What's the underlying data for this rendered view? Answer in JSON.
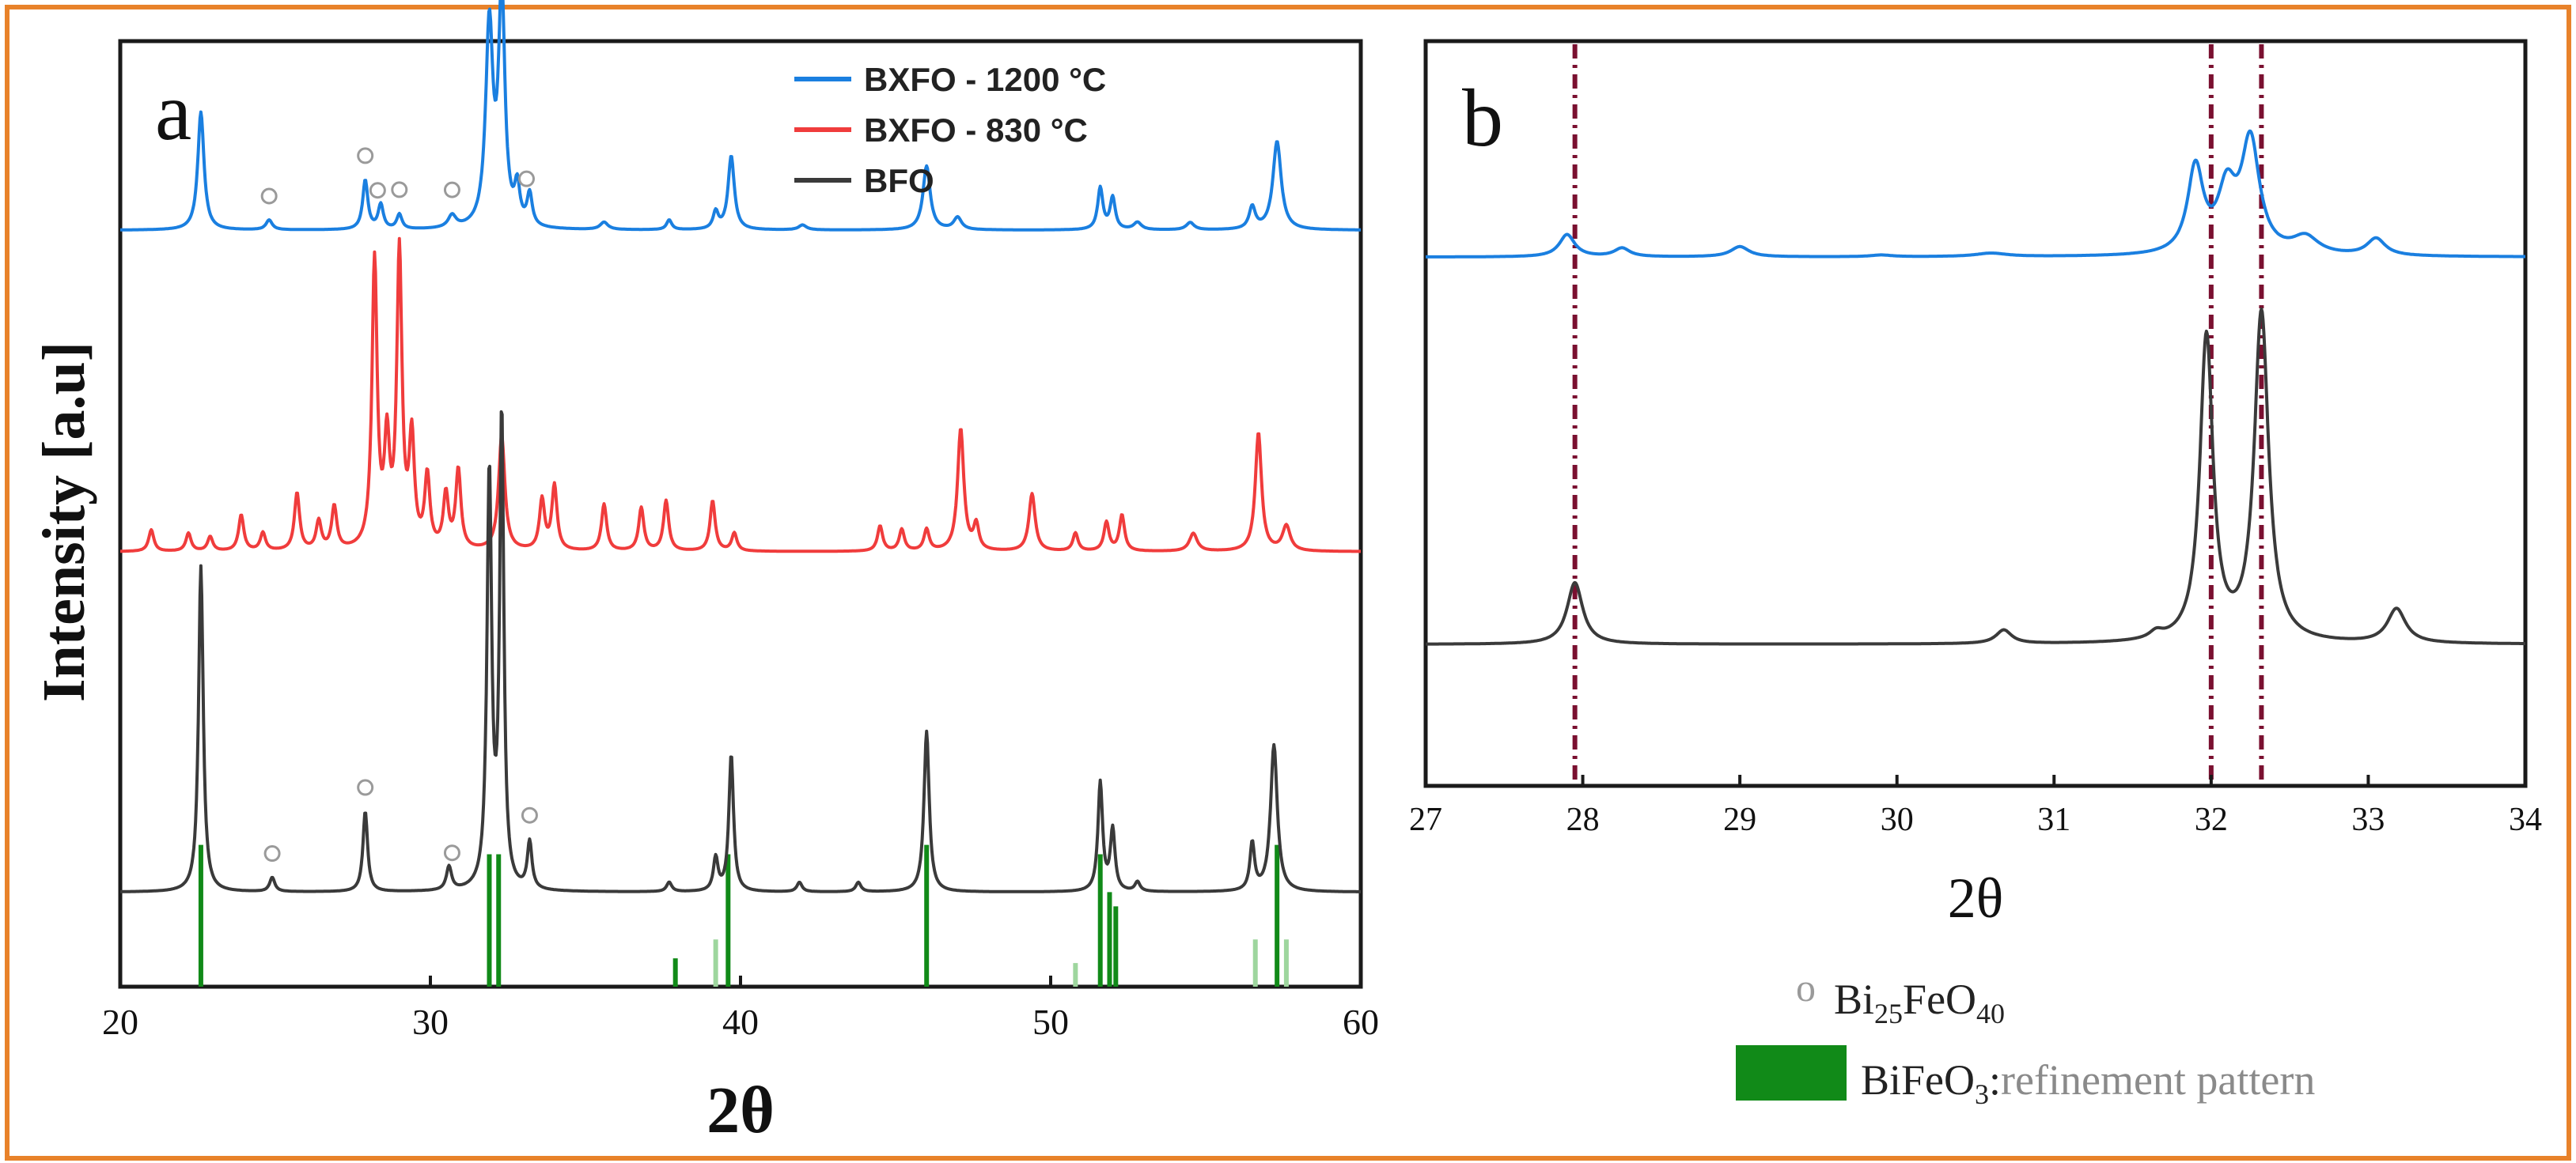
{
  "colors": {
    "frame": "#e8822a",
    "bxfo_1200": "#1a7fe0",
    "bxfo_830": "#f03c3c",
    "bfo": "#3a3a3a",
    "refinement": "#118a18",
    "refinement_light": "#9ed69e",
    "guide": "#7a1030",
    "marker": "#9a9a9a"
  },
  "chart_data": [
    {
      "panel": "a",
      "type": "line",
      "xlabel": "2θ",
      "ylabel": "Intensity [a.u]",
      "xlim": [
        20,
        60
      ],
      "x_ticks": [
        20,
        30,
        40,
        50,
        60
      ],
      "y_ticks": [],
      "legend_position": "top-center",
      "series": [
        {
          "name": "BXFO - 1200 °C",
          "color": "#1a7fe0",
          "baseline": 0.8,
          "scale": 0.26,
          "peaks": [
            [
              22.6,
              0.48,
              0.12
            ],
            [
              24.8,
              0.04,
              0.12
            ],
            [
              27.9,
              0.2,
              0.1
            ],
            [
              28.4,
              0.1,
              0.1
            ],
            [
              29.0,
              0.06,
              0.1
            ],
            [
              30.7,
              0.05,
              0.15
            ],
            [
              31.9,
              0.82,
              0.14
            ],
            [
              32.3,
              0.95,
              0.12
            ],
            [
              32.8,
              0.15,
              0.1
            ],
            [
              33.2,
              0.13,
              0.1
            ],
            [
              35.6,
              0.03,
              0.15
            ],
            [
              37.7,
              0.04,
              0.1
            ],
            [
              39.2,
              0.07,
              0.1
            ],
            [
              39.7,
              0.3,
              0.12
            ],
            [
              42.0,
              0.02,
              0.15
            ],
            [
              46.0,
              0.26,
              0.14
            ],
            [
              47.0,
              0.05,
              0.15
            ],
            [
              51.6,
              0.17,
              0.1
            ],
            [
              52.0,
              0.13,
              0.1
            ],
            [
              52.8,
              0.03,
              0.15
            ],
            [
              54.5,
              0.03,
              0.15
            ],
            [
              56.5,
              0.09,
              0.12
            ],
            [
              57.3,
              0.36,
              0.16
            ]
          ]
        },
        {
          "name": "BXFO - 830 °C",
          "color": "#f03c3c",
          "baseline": 0.46,
          "scale": 0.38,
          "peaks": [
            [
              21.0,
              0.06,
              0.1
            ],
            [
              22.2,
              0.05,
              0.1
            ],
            [
              22.9,
              0.04,
              0.1
            ],
            [
              23.9,
              0.1,
              0.1
            ],
            [
              24.6,
              0.05,
              0.1
            ],
            [
              25.7,
              0.16,
              0.1
            ],
            [
              26.4,
              0.08,
              0.1
            ],
            [
              26.9,
              0.12,
              0.1
            ],
            [
              28.2,
              0.8,
              0.1
            ],
            [
              28.6,
              0.28,
              0.1
            ],
            [
              29.0,
              0.82,
              0.1
            ],
            [
              29.4,
              0.3,
              0.1
            ],
            [
              29.9,
              0.2,
              0.1
            ],
            [
              30.5,
              0.15,
              0.1
            ],
            [
              30.9,
              0.22,
              0.1
            ],
            [
              32.3,
              0.32,
              0.12
            ],
            [
              33.6,
              0.14,
              0.1
            ],
            [
              34.0,
              0.18,
              0.1
            ],
            [
              35.6,
              0.13,
              0.1
            ],
            [
              36.8,
              0.12,
              0.1
            ],
            [
              37.6,
              0.14,
              0.1
            ],
            [
              39.1,
              0.14,
              0.1
            ],
            [
              39.8,
              0.05,
              0.1
            ],
            [
              44.5,
              0.07,
              0.1
            ],
            [
              45.2,
              0.06,
              0.1
            ],
            [
              46.0,
              0.06,
              0.1
            ],
            [
              47.1,
              0.34,
              0.12
            ],
            [
              47.6,
              0.07,
              0.1
            ],
            [
              49.4,
              0.16,
              0.12
            ],
            [
              50.8,
              0.05,
              0.1
            ],
            [
              51.8,
              0.08,
              0.1
            ],
            [
              52.3,
              0.1,
              0.1
            ],
            [
              54.6,
              0.05,
              0.15
            ],
            [
              56.7,
              0.33,
              0.12
            ],
            [
              57.6,
              0.07,
              0.15
            ]
          ]
        },
        {
          "name": "BFO",
          "color": "#3a3a3a",
          "baseline": 0.1,
          "scale": 0.5,
          "peaks": [
            [
              22.6,
              0.69,
              0.09
            ],
            [
              24.9,
              0.03,
              0.1
            ],
            [
              27.9,
              0.17,
              0.09
            ],
            [
              30.6,
              0.05,
              0.1
            ],
            [
              31.9,
              0.88,
              0.09
            ],
            [
              32.3,
              1.0,
              0.08
            ],
            [
              33.2,
              0.1,
              0.09
            ],
            [
              37.7,
              0.02,
              0.1
            ],
            [
              39.2,
              0.07,
              0.09
            ],
            [
              39.7,
              0.29,
              0.09
            ],
            [
              41.9,
              0.02,
              0.1
            ],
            [
              43.8,
              0.02,
              0.1
            ],
            [
              46.0,
              0.34,
              0.1
            ],
            [
              51.6,
              0.23,
              0.09
            ],
            [
              52.0,
              0.13,
              0.09
            ],
            [
              52.8,
              0.02,
              0.1
            ],
            [
              56.5,
              0.1,
              0.09
            ],
            [
              57.2,
              0.31,
              0.13
            ]
          ]
        }
      ],
      "reference": {
        "name": "BiFeO3 refinement pattern",
        "sticks": [
          [
            22.6,
            0.3,
            "dark"
          ],
          [
            31.9,
            0.28,
            "dark"
          ],
          [
            32.2,
            0.28,
            "dark"
          ],
          [
            37.9,
            0.06,
            "dark"
          ],
          [
            39.2,
            0.1,
            "light"
          ],
          [
            39.6,
            0.28,
            "dark"
          ],
          [
            46.0,
            0.3,
            "dark"
          ],
          [
            50.8,
            0.05,
            "light"
          ],
          [
            51.6,
            0.28,
            "dark"
          ],
          [
            51.9,
            0.2,
            "dark"
          ],
          [
            52.1,
            0.17,
            "dark"
          ],
          [
            56.6,
            0.1,
            "light"
          ],
          [
            57.3,
            0.3,
            "dark"
          ],
          [
            57.6,
            0.1,
            "light"
          ]
        ]
      },
      "markers_bxfo_1200": [
        24.8,
        27.9,
        28.3,
        29.0,
        30.7,
        33.1
      ],
      "markers_bfo": [
        24.9,
        27.9,
        30.7,
        33.2
      ]
    },
    {
      "panel": "b",
      "type": "line",
      "xlabel": "2θ",
      "xlim": [
        27,
        34
      ],
      "x_ticks": [
        27,
        28,
        29,
        30,
        31,
        32,
        33,
        34
      ],
      "guide_lines": [
        27.95,
        32.0,
        32.32
      ],
      "series": [
        {
          "name": "BXFO - 1200 °C",
          "color": "#1a7fe0",
          "baseline": 0.71,
          "scale": 0.23,
          "peaks": [
            [
              27.9,
              0.13,
              0.06
            ],
            [
              28.25,
              0.05,
              0.06
            ],
            [
              29.0,
              0.06,
              0.07
            ],
            [
              29.9,
              0.01,
              0.08
            ],
            [
              30.6,
              0.02,
              0.12
            ],
            [
              31.9,
              0.5,
              0.06
            ],
            [
              32.1,
              0.35,
              0.07
            ],
            [
              32.25,
              0.65,
              0.07
            ],
            [
              32.6,
              0.1,
              0.1
            ],
            [
              33.05,
              0.1,
              0.07
            ]
          ]
        },
        {
          "name": "BFO",
          "color": "#3a3a3a",
          "baseline": 0.19,
          "scale": 0.46,
          "peaks": [
            [
              27.95,
              0.18,
              0.06
            ],
            [
              30.68,
              0.04,
              0.06
            ],
            [
              31.65,
              0.02,
              0.05
            ],
            [
              31.97,
              0.89,
              0.05
            ],
            [
              32.32,
              0.96,
              0.055
            ],
            [
              33.18,
              0.1,
              0.07
            ]
          ]
        }
      ]
    }
  ],
  "panel_a": {
    "label": "a",
    "xlabel": "2θ",
    "ylabel": "Intensity [a.u]",
    "legend": [
      "BXFO - 1200 °C",
      "BXFO - 830 °C",
      "BFO"
    ]
  },
  "panel_b": {
    "label": "b",
    "xlabel": "2θ"
  },
  "key": {
    "marker_symbol": "o",
    "bi25_base": "Bi",
    "bi25_sub1": "25",
    "bi25_mid": "FeO",
    "bi25_sub2": "40",
    "bifeo_base": "BiFeO",
    "bifeo_sub": "3",
    "bifeo_colon": ":",
    "bifeo_desc": "refinement pattern"
  }
}
